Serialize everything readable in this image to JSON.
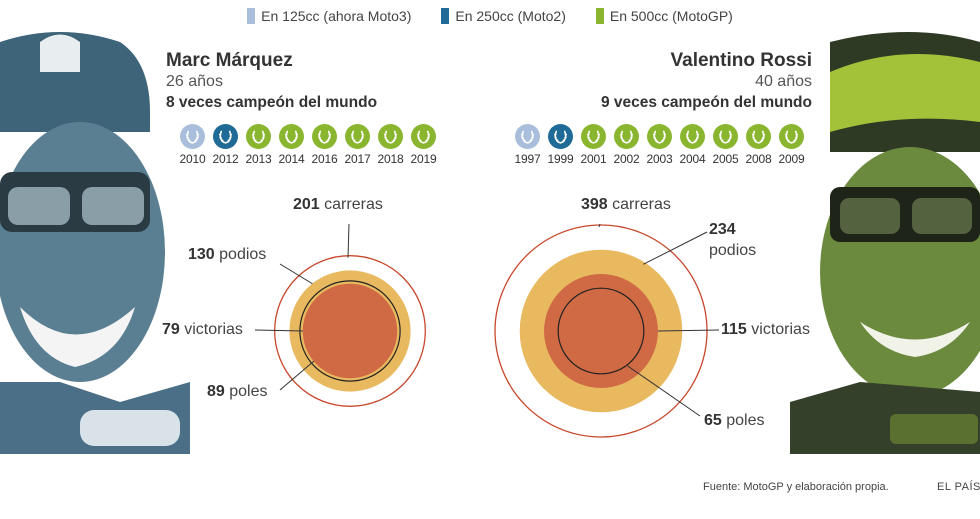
{
  "legend": [
    {
      "label": "En 125cc (ahora Moto3)",
      "color": "#a9bedb"
    },
    {
      "label": "En 250cc (Moto2)",
      "color": "#1f6a96"
    },
    {
      "label": "En 500cc (MotoGP)",
      "color": "#8ab62f"
    }
  ],
  "riders": [
    {
      "name": "Marc Márquez",
      "age": "26 años",
      "titles": "8 veces campeón del mundo",
      "medals": [
        {
          "year": "2010",
          "class": "125cc"
        },
        {
          "year": "2012",
          "class": "250cc"
        },
        {
          "year": "2013",
          "class": "500cc"
        },
        {
          "year": "2014",
          "class": "500cc"
        },
        {
          "year": "2016",
          "class": "500cc"
        },
        {
          "year": "2017",
          "class": "500cc"
        },
        {
          "year": "2018",
          "class": "500cc"
        },
        {
          "year": "2019",
          "class": "500cc"
        }
      ],
      "stats": {
        "carreras": {
          "value": "201",
          "label": "carreras"
        },
        "podios": {
          "value": "130",
          "label": "podios"
        },
        "victorias": {
          "value": "79",
          "label": "victorias"
        },
        "poles": {
          "value": "89",
          "label": "poles"
        }
      }
    },
    {
      "name": "Valentino Rossi",
      "age": "40 años",
      "titles": "9 veces campeón del mundo",
      "medals": [
        {
          "year": "1997",
          "class": "125cc"
        },
        {
          "year": "1999",
          "class": "250cc"
        },
        {
          "year": "2001",
          "class": "500cc"
        },
        {
          "year": "2002",
          "class": "500cc"
        },
        {
          "year": "2003",
          "class": "500cc"
        },
        {
          "year": "2004",
          "class": "500cc"
        },
        {
          "year": "2005",
          "class": "500cc"
        },
        {
          "year": "2008",
          "class": "500cc"
        },
        {
          "year": "2009",
          "class": "500cc"
        }
      ],
      "stats": {
        "carreras": {
          "value": "398",
          "label": "carreras"
        },
        "podios": {
          "value": "234",
          "label": "podios"
        },
        "victorias": {
          "value": "115",
          "label": "victorias"
        },
        "poles": {
          "value": "65",
          "label": "poles"
        }
      }
    }
  ],
  "colors": {
    "carreras": "#c7472b",
    "podios": "#e9b960",
    "victorias": "#d06a44",
    "poles": "#222222",
    "125cc": "#a9bedb",
    "250cc": "#1f6a96",
    "500cc": "#8ab62f"
  },
  "chart_data": {
    "type": "proportional-circles",
    "categories": [
      "carreras",
      "podios",
      "victorias",
      "poles"
    ],
    "series": [
      {
        "name": "Marc Márquez",
        "values": [
          201,
          130,
          79,
          89
        ]
      },
      {
        "name": "Valentino Rossi",
        "values": [
          398,
          234,
          115,
          65
        ]
      }
    ]
  },
  "footer": {
    "source": "Fuente: MotoGP y elaboración propia.",
    "brand": "EL PAÍS"
  }
}
